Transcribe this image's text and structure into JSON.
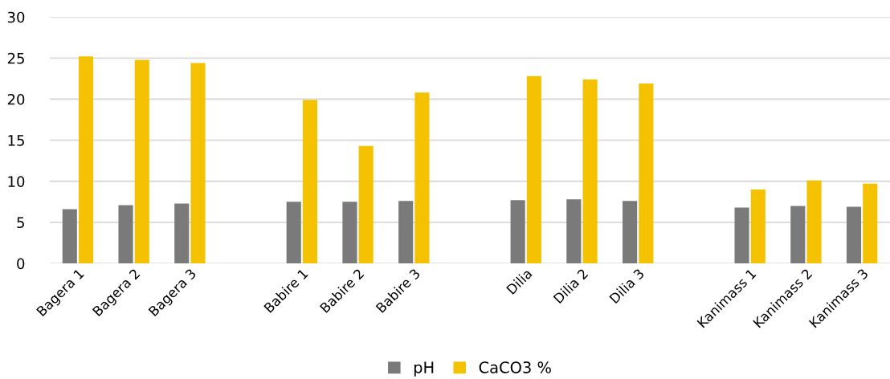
{
  "chart_data": {
    "type": "bar",
    "categories": [
      "Bagera 1",
      "Bagera 2",
      "Bagera 3",
      null,
      "Babire 1",
      "Babire 2",
      "Babire 3",
      null,
      "Dilia",
      "Dilia 2",
      "Dilia 3",
      null,
      "Kanimass 1",
      "Kanimass 2",
      "Kanimass 3"
    ],
    "series": [
      {
        "name": "pH",
        "color": "#7a7a7a",
        "values": [
          6.6,
          7.1,
          7.3,
          null,
          7.5,
          7.5,
          7.6,
          null,
          7.7,
          7.8,
          7.6,
          null,
          6.8,
          7.0,
          6.9
        ]
      },
      {
        "name": "CaCO3 %",
        "color": "#f4c200",
        "values": [
          25.2,
          24.8,
          24.4,
          null,
          19.9,
          14.3,
          20.8,
          null,
          22.8,
          22.4,
          21.9,
          null,
          9.0,
          10.1,
          9.7
        ]
      }
    ],
    "ylim": [
      0,
      30
    ],
    "yticks": [
      0,
      5,
      10,
      15,
      20,
      25,
      30
    ],
    "grid": "y",
    "legend": "bottom"
  }
}
